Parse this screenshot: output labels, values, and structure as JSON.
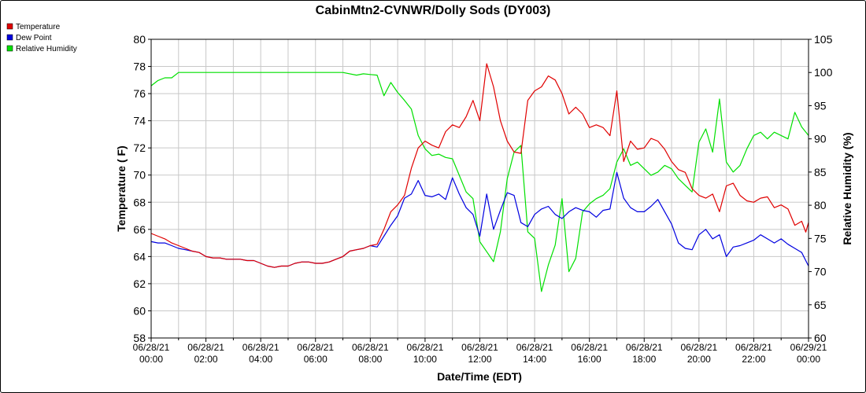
{
  "chart_data": {
    "type": "line",
    "title": "CabinMtn2-CVNWR/Dolly Sods (DY003)",
    "xlabel": "Date/Time (EDT)",
    "ylabel": "Temperature ( F)",
    "y2label": "Relative Humidity (%)",
    "ylim": [
      58,
      80
    ],
    "y2lim": [
      60,
      105
    ],
    "yticks": [
      "58",
      "60",
      "62",
      "64",
      "66",
      "68",
      "70",
      "72",
      "74",
      "76",
      "78",
      "80"
    ],
    "y2ticks": [
      "60",
      "65",
      "70",
      "75",
      "80",
      "85",
      "90",
      "95",
      "100",
      "105"
    ],
    "xlim_hours": [
      0,
      24
    ],
    "xticks": [
      {
        "date": "06/28/21",
        "time": "00:00"
      },
      {
        "date": "06/28/21",
        "time": "02:00"
      },
      {
        "date": "06/28/21",
        "time": "04:00"
      },
      {
        "date": "06/28/21",
        "time": "06:00"
      },
      {
        "date": "06/28/21",
        "time": "08:00"
      },
      {
        "date": "06/28/21",
        "time": "10:00"
      },
      {
        "date": "06/28/21",
        "time": "12:00"
      },
      {
        "date": "06/28/21",
        "time": "14:00"
      },
      {
        "date": "06/28/21",
        "time": "16:00"
      },
      {
        "date": "06/28/21",
        "time": "18:00"
      },
      {
        "date": "06/28/21",
        "time": "20:00"
      },
      {
        "date": "06/28/21",
        "time": "22:00"
      },
      {
        "date": "06/29/21",
        "time": "00:00"
      }
    ],
    "grid": true,
    "legend_position": "top-left",
    "series": [
      {
        "name": "Temperature",
        "axis": "left",
        "color": "#e00000",
        "points": [
          [
            0,
            65.7
          ],
          [
            0.25,
            65.5
          ],
          [
            0.5,
            65.3
          ],
          [
            0.75,
            65.0
          ],
          [
            1,
            64.8
          ],
          [
            1.25,
            64.6
          ],
          [
            1.5,
            64.4
          ],
          [
            1.75,
            64.3
          ],
          [
            2,
            64.0
          ],
          [
            2.25,
            63.9
          ],
          [
            2.5,
            63.9
          ],
          [
            2.75,
            63.8
          ],
          [
            3,
            63.8
          ],
          [
            3.25,
            63.8
          ],
          [
            3.5,
            63.7
          ],
          [
            3.75,
            63.7
          ],
          [
            4,
            63.5
          ],
          [
            4.25,
            63.3
          ],
          [
            4.5,
            63.2
          ],
          [
            4.75,
            63.3
          ],
          [
            5,
            63.3
          ],
          [
            5.25,
            63.5
          ],
          [
            5.5,
            63.6
          ],
          [
            5.75,
            63.6
          ],
          [
            6,
            63.5
          ],
          [
            6.25,
            63.5
          ],
          [
            6.5,
            63.6
          ],
          [
            6.75,
            63.8
          ],
          [
            7,
            64.0
          ],
          [
            7.25,
            64.4
          ],
          [
            7.5,
            64.5
          ],
          [
            7.75,
            64.6
          ],
          [
            8,
            64.8
          ],
          [
            8.25,
            64.9
          ],
          [
            8.5,
            66.0
          ],
          [
            8.75,
            67.3
          ],
          [
            9,
            67.8
          ],
          [
            9.25,
            68.5
          ],
          [
            9.5,
            70.5
          ],
          [
            9.75,
            72.0
          ],
          [
            10,
            72.5
          ],
          [
            10.25,
            72.2
          ],
          [
            10.5,
            72.0
          ],
          [
            10.75,
            73.2
          ],
          [
            11,
            73.7
          ],
          [
            11.25,
            73.5
          ],
          [
            11.5,
            74.3
          ],
          [
            11.75,
            75.5
          ],
          [
            12,
            74.0
          ],
          [
            12.25,
            78.2
          ],
          [
            12.5,
            76.5
          ],
          [
            12.75,
            74.0
          ],
          [
            13,
            72.5
          ],
          [
            13.25,
            71.7
          ],
          [
            13.5,
            71.6
          ],
          [
            13.75,
            75.5
          ],
          [
            14,
            76.2
          ],
          [
            14.25,
            76.5
          ],
          [
            14.5,
            77.3
          ],
          [
            14.75,
            77.0
          ],
          [
            15,
            76.0
          ],
          [
            15.25,
            74.5
          ],
          [
            15.5,
            75.0
          ],
          [
            15.75,
            74.5
          ],
          [
            16,
            73.5
          ],
          [
            16.25,
            73.7
          ],
          [
            16.5,
            73.5
          ],
          [
            16.75,
            72.9
          ],
          [
            17,
            76.2
          ],
          [
            17.25,
            71.0
          ],
          [
            17.5,
            72.5
          ],
          [
            17.75,
            71.9
          ],
          [
            18,
            72.0
          ],
          [
            18.25,
            72.7
          ],
          [
            18.5,
            72.5
          ],
          [
            18.75,
            71.9
          ],
          [
            19,
            71.0
          ],
          [
            19.25,
            70.4
          ],
          [
            19.5,
            70.2
          ],
          [
            19.75,
            69.0
          ],
          [
            20,
            68.5
          ],
          [
            20.25,
            68.3
          ],
          [
            20.5,
            68.6
          ],
          [
            20.75,
            67.3
          ],
          [
            21,
            69.2
          ],
          [
            21.25,
            69.4
          ],
          [
            21.5,
            68.5
          ],
          [
            21.75,
            68.1
          ],
          [
            22,
            68.0
          ],
          [
            22.25,
            68.3
          ],
          [
            22.5,
            68.4
          ],
          [
            22.75,
            67.6
          ],
          [
            23,
            67.8
          ],
          [
            23.25,
            67.5
          ],
          [
            23.5,
            66.3
          ],
          [
            23.75,
            66.6
          ],
          [
            23.9,
            65.8
          ],
          [
            24,
            66.5
          ]
        ]
      },
      {
        "name": "Dew Point",
        "axis": "left",
        "color": "#0000e0",
        "points": [
          [
            0,
            65.1
          ],
          [
            0.25,
            65.0
          ],
          [
            0.5,
            65.0
          ],
          [
            0.75,
            64.8
          ],
          [
            1,
            64.6
          ],
          [
            1.25,
            64.5
          ],
          [
            1.5,
            64.4
          ],
          [
            1.75,
            64.3
          ],
          [
            2,
            64.0
          ],
          [
            2.25,
            63.9
          ],
          [
            2.5,
            63.9
          ],
          [
            2.75,
            63.8
          ],
          [
            3,
            63.8
          ],
          [
            3.25,
            63.8
          ],
          [
            3.5,
            63.7
          ],
          [
            3.75,
            63.7
          ],
          [
            4,
            63.5
          ],
          [
            4.25,
            63.3
          ],
          [
            4.5,
            63.2
          ],
          [
            4.75,
            63.3
          ],
          [
            5,
            63.3
          ],
          [
            5.25,
            63.5
          ],
          [
            5.5,
            63.6
          ],
          [
            5.75,
            63.6
          ],
          [
            6,
            63.5
          ],
          [
            6.25,
            63.5
          ],
          [
            6.5,
            63.6
          ],
          [
            6.75,
            63.8
          ],
          [
            7,
            64.0
          ],
          [
            7.25,
            64.4
          ],
          [
            7.5,
            64.5
          ],
          [
            7.75,
            64.6
          ],
          [
            8,
            64.8
          ],
          [
            8.25,
            64.7
          ],
          [
            8.5,
            65.5
          ],
          [
            8.75,
            66.3
          ],
          [
            9,
            67.0
          ],
          [
            9.25,
            68.3
          ],
          [
            9.5,
            68.6
          ],
          [
            9.75,
            69.6
          ],
          [
            10,
            68.5
          ],
          [
            10.25,
            68.4
          ],
          [
            10.5,
            68.6
          ],
          [
            10.75,
            68.2
          ],
          [
            11,
            69.8
          ],
          [
            11.25,
            68.6
          ],
          [
            11.5,
            67.6
          ],
          [
            11.75,
            67.1
          ],
          [
            12,
            65.5
          ],
          [
            12.25,
            68.6
          ],
          [
            12.5,
            66.0
          ],
          [
            12.75,
            67.4
          ],
          [
            13,
            68.7
          ],
          [
            13.25,
            68.5
          ],
          [
            13.5,
            66.5
          ],
          [
            13.75,
            66.2
          ],
          [
            14,
            67.1
          ],
          [
            14.25,
            67.5
          ],
          [
            14.5,
            67.7
          ],
          [
            14.75,
            67.1
          ],
          [
            15,
            66.8
          ],
          [
            15.25,
            67.3
          ],
          [
            15.5,
            67.6
          ],
          [
            15.75,
            67.4
          ],
          [
            16,
            67.3
          ],
          [
            16.25,
            66.9
          ],
          [
            16.5,
            67.4
          ],
          [
            16.75,
            67.5
          ],
          [
            17,
            70.2
          ],
          [
            17.25,
            68.3
          ],
          [
            17.5,
            67.6
          ],
          [
            17.75,
            67.3
          ],
          [
            18,
            67.3
          ],
          [
            18.25,
            67.7
          ],
          [
            18.5,
            68.2
          ],
          [
            18.75,
            67.3
          ],
          [
            19,
            66.4
          ],
          [
            19.25,
            65.0
          ],
          [
            19.5,
            64.6
          ],
          [
            19.75,
            64.5
          ],
          [
            20,
            65.6
          ],
          [
            20.25,
            66.0
          ],
          [
            20.5,
            65.3
          ],
          [
            20.75,
            65.6
          ],
          [
            21,
            64.0
          ],
          [
            21.25,
            64.7
          ],
          [
            21.5,
            64.8
          ],
          [
            21.75,
            65.0
          ],
          [
            22,
            65.2
          ],
          [
            22.25,
            65.6
          ],
          [
            22.5,
            65.3
          ],
          [
            22.75,
            65.0
          ],
          [
            23,
            65.3
          ],
          [
            23.25,
            64.9
          ],
          [
            23.5,
            64.6
          ],
          [
            23.75,
            64.3
          ],
          [
            24,
            63.3
          ]
        ]
      },
      {
        "name": "Relative Humidity",
        "axis": "right",
        "color": "#00e000",
        "points": [
          [
            0,
            98.0
          ],
          [
            0.25,
            98.8
          ],
          [
            0.5,
            99.2
          ],
          [
            0.75,
            99.2
          ],
          [
            1,
            100
          ],
          [
            1.5,
            100
          ],
          [
            2,
            100
          ],
          [
            3,
            100
          ],
          [
            4,
            100
          ],
          [
            5,
            100
          ],
          [
            6,
            100
          ],
          [
            7,
            100
          ],
          [
            7.5,
            99.6
          ],
          [
            7.75,
            99.8
          ],
          [
            8,
            99.7
          ],
          [
            8.25,
            99.6
          ],
          [
            8.5,
            96.5
          ],
          [
            8.75,
            98.5
          ],
          [
            9,
            97.0
          ],
          [
            9.25,
            95.8
          ],
          [
            9.5,
            94.5
          ],
          [
            9.75,
            90.5
          ],
          [
            10,
            88.5
          ],
          [
            10.25,
            87.5
          ],
          [
            10.5,
            87.7
          ],
          [
            10.75,
            87.2
          ],
          [
            11,
            87.0
          ],
          [
            11.25,
            84.5
          ],
          [
            11.5,
            82.0
          ],
          [
            11.75,
            81.0
          ],
          [
            12,
            74.5
          ],
          [
            12.25,
            73.0
          ],
          [
            12.5,
            71.5
          ],
          [
            12.75,
            76.0
          ],
          [
            13,
            84.0
          ],
          [
            13.25,
            88.0
          ],
          [
            13.5,
            89.0
          ],
          [
            13.75,
            76.0
          ],
          [
            14,
            75.0
          ],
          [
            14.25,
            67.0
          ],
          [
            14.5,
            71.0
          ],
          [
            14.75,
            74.0
          ],
          [
            15,
            81.0
          ],
          [
            15.25,
            70.0
          ],
          [
            15.5,
            72.0
          ],
          [
            15.75,
            79.0
          ],
          [
            16,
            80.2
          ],
          [
            16.25,
            81.0
          ],
          [
            16.5,
            81.5
          ],
          [
            16.75,
            82.5
          ],
          [
            17,
            86.5
          ],
          [
            17.25,
            88.5
          ],
          [
            17.5,
            86.0
          ],
          [
            17.75,
            86.5
          ],
          [
            18,
            85.5
          ],
          [
            18.25,
            84.5
          ],
          [
            18.5,
            85.0
          ],
          [
            18.75,
            86.0
          ],
          [
            19,
            85.5
          ],
          [
            19.25,
            84.0
          ],
          [
            19.5,
            83.0
          ],
          [
            19.75,
            82.0
          ],
          [
            20,
            89.5
          ],
          [
            20.25,
            91.5
          ],
          [
            20.5,
            88.0
          ],
          [
            20.75,
            96.0
          ],
          [
            21,
            86.5
          ],
          [
            21.25,
            85.0
          ],
          [
            21.5,
            86.0
          ],
          [
            21.75,
            88.5
          ],
          [
            22,
            90.5
          ],
          [
            22.25,
            91.0
          ],
          [
            22.5,
            90.0
          ],
          [
            22.75,
            91.0
          ],
          [
            23,
            90.5
          ],
          [
            23.25,
            90.0
          ],
          [
            23.5,
            94.0
          ],
          [
            23.75,
            91.8
          ],
          [
            24,
            90.5
          ]
        ]
      }
    ]
  }
}
